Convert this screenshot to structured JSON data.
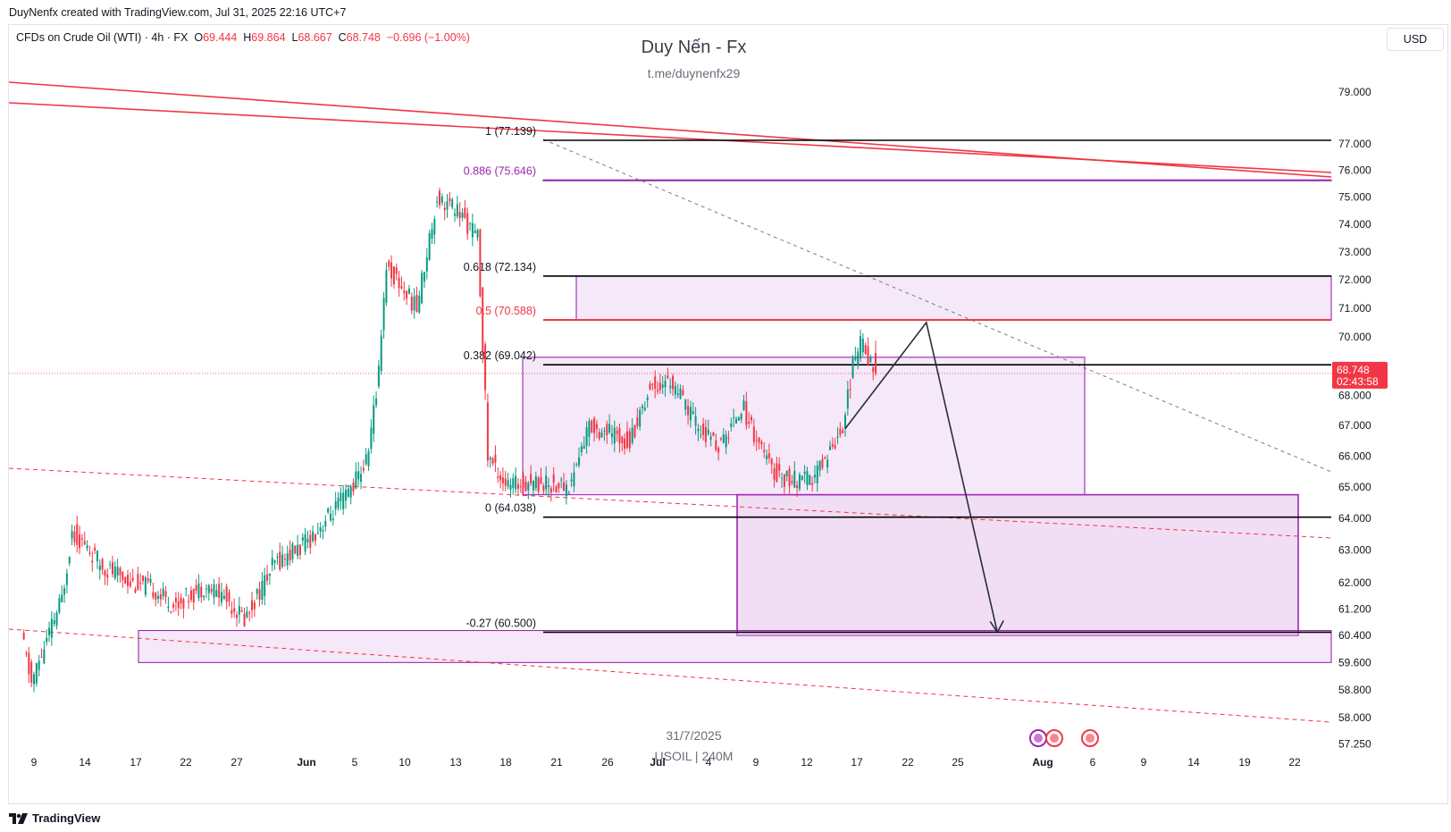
{
  "header": {
    "created": "DuyNenfx created with TradingView.com, Jul 31, 2025 22:16 UTC+7"
  },
  "legend": {
    "symbol": "CFDs on Crude Oil (WTI) · 4h · FX",
    "o_label": "O",
    "o_value": "69.444",
    "h_label": "H",
    "h_value": "69.864",
    "l_label": "L",
    "l_value": "68.667",
    "c_label": "C",
    "c_value": "68.748",
    "change": "−0.696 (−1.00%)"
  },
  "currency_button": "USD",
  "watermark": {
    "title": "Duy Nến - Fx",
    "subtitle": "t.me/duynenfx29",
    "date": "31/7/2025",
    "symbol": "USOIL | 240M"
  },
  "branding": "TradingView",
  "colors": {
    "up": "#089981",
    "down": "#f23645",
    "trendline": "#f23645",
    "zone_fill": "#e9cdef",
    "zone_border": "#9c27b0",
    "fib_line": "#000000",
    "price_label_bg": "#f23645"
  },
  "chart_data": {
    "type": "candlestick",
    "symbol": "USOIL",
    "timeframe": "240M",
    "price_axis": {
      "ticks": [
        "79.000",
        "77.000",
        "76.000",
        "75.000",
        "74.000",
        "73.000",
        "72.000",
        "71.000",
        "70.000",
        "69.000",
        "68.000",
        "67.000",
        "66.000",
        "65.000",
        "64.000",
        "63.000",
        "62.000",
        "61.200",
        "60.400",
        "59.600",
        "58.800",
        "58.000",
        "57.250"
      ],
      "scale": "log"
    },
    "current_price": "68.748",
    "countdown": "02:43:58",
    "time_axis": [
      "9",
      "14",
      "17",
      "22",
      "27",
      "Jun",
      "5",
      "10",
      "13",
      "18",
      "21",
      "26",
      "Jul",
      "4",
      "9",
      "12",
      "17",
      "22",
      "25",
      "Aug",
      "6",
      "9",
      "14",
      "19",
      "22"
    ],
    "fib_levels": [
      {
        "ratio": "1",
        "price": "77.139",
        "label": "1 (77.139)"
      },
      {
        "ratio": "0.886",
        "price": "75.646",
        "label": "0.886 (75.646)"
      },
      {
        "ratio": "0.618",
        "price": "72.134",
        "label": "0.618 (72.134)"
      },
      {
        "ratio": "0.5",
        "price": "70.588",
        "label": "0.5 (70.588)"
      },
      {
        "ratio": "0.382",
        "price": "69.042",
        "label": "0.382 (69.042)"
      },
      {
        "ratio": "0",
        "price": "64.038",
        "label": "0 (64.038)"
      },
      {
        "ratio": "-0.27",
        "price": "60.500",
        "label": "-0.27 (60.500)"
      }
    ],
    "zones": [
      {
        "price_top": 75.646,
        "price_bottom": 75.646
      },
      {
        "price_top": 72.134,
        "price_bottom": 70.588
      },
      {
        "price_top": 69.3,
        "price_bottom": 64.75
      },
      {
        "price_top": 64.75,
        "price_bottom": 60.4
      },
      {
        "price_top": 60.55,
        "price_bottom": 59.6
      }
    ],
    "ohlc_last": {
      "open": 69.444,
      "high": 69.864,
      "low": 68.667,
      "close": 68.748,
      "change": -0.696,
      "change_pct": -1.0
    },
    "close_path": [
      {
        "t": "May 8",
        "price": 60.4
      },
      {
        "t": "May 9",
        "price": 59.0
      },
      {
        "t": "May 12",
        "price": 61.5
      },
      {
        "t": "May 13",
        "price": 63.6
      },
      {
        "t": "May 16",
        "price": 62.5
      },
      {
        "t": "May 19",
        "price": 62.0
      },
      {
        "t": "May 21",
        "price": 61.8
      },
      {
        "t": "May 23",
        "price": 61.3
      },
      {
        "t": "May 26",
        "price": 61.9
      },
      {
        "t": "May 28",
        "price": 61.6
      },
      {
        "t": "May 30",
        "price": 60.9
      },
      {
        "t": "Jun 2",
        "price": 62.6
      },
      {
        "t": "Jun 5",
        "price": 63.2
      },
      {
        "t": "Jun 9",
        "price": 64.7
      },
      {
        "t": "Jun 11",
        "price": 65.8
      },
      {
        "t": "Jun 12",
        "price": 68.0
      },
      {
        "t": "Jun 13",
        "price": 72.5
      },
      {
        "t": "Jun 16",
        "price": 71.0
      },
      {
        "t": "Jun 18",
        "price": 75.0
      },
      {
        "t": "Jun 20",
        "price": 74.5
      },
      {
        "t": "Jun 22",
        "price": 73.5
      },
      {
        "t": "Jun 23",
        "price": 66.0
      },
      {
        "t": "Jun 25",
        "price": 65.0
      },
      {
        "t": "Jun 27",
        "price": 65.2
      },
      {
        "t": "Jul 1",
        "price": 65.0
      },
      {
        "t": "Jul 3",
        "price": 67.0
      },
      {
        "t": "Jul 7",
        "price": 66.5
      },
      {
        "t": "Jul 9",
        "price": 68.3
      },
      {
        "t": "Jul 11",
        "price": 68.5
      },
      {
        "t": "Jul 14",
        "price": 66.8
      },
      {
        "t": "Jul 16",
        "price": 66.3
      },
      {
        "t": "Jul 18",
        "price": 67.7
      },
      {
        "t": "Jul 21",
        "price": 65.5
      },
      {
        "t": "Jul 23",
        "price": 65.2
      },
      {
        "t": "Jul 25",
        "price": 65.2
      },
      {
        "t": "Jul 28",
        "price": 67.0
      },
      {
        "t": "Jul 29",
        "price": 69.0
      },
      {
        "t": "Jul 30",
        "price": 70.0
      },
      {
        "t": "Jul 31",
        "price": 68.748
      }
    ],
    "projection": [
      {
        "t": "Jul 28",
        "price": 66.9
      },
      {
        "t": "Aug 5",
        "price": 70.5
      },
      {
        "t": "Aug 12",
        "price": 60.5
      }
    ]
  }
}
